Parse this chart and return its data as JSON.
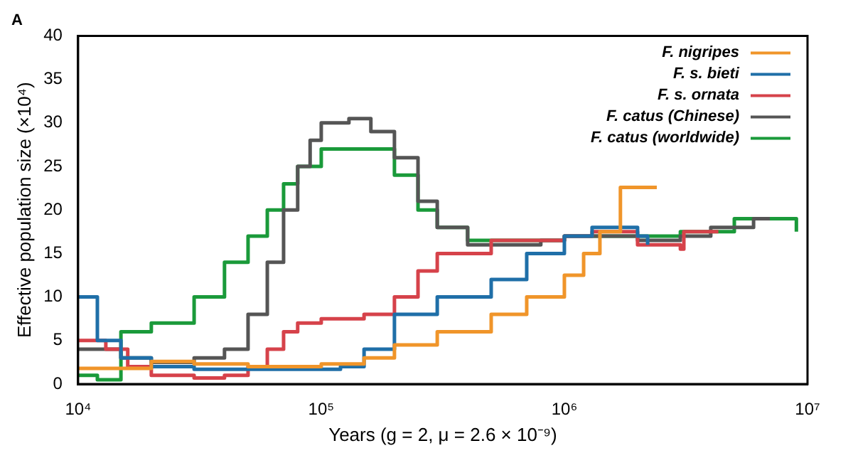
{
  "chart_data": {
    "type": "step",
    "title": "A",
    "xlabel": "Years (g = 2, μ = 2.6 × 10⁻⁹)",
    "ylabel": "Effective population size (×10⁴)",
    "log": "x",
    "xlim": [
      10000,
      10000000
    ],
    "xticks": [
      {
        "value": 10000,
        "label": "10⁴"
      },
      {
        "value": 100000,
        "label": "10⁵"
      },
      {
        "value": 1000000,
        "label": "10⁶"
      },
      {
        "value": 10000000,
        "label": "10⁷"
      }
    ],
    "ylim": [
      0,
      40
    ],
    "yticks": [
      0,
      5,
      10,
      15,
      20,
      25,
      30,
      35,
      40
    ],
    "grid": false,
    "legend": "top right",
    "series": [
      {
        "name": "F. nigripes",
        "color": "#f0952a",
        "x": [
          10000,
          20000,
          30000,
          50000,
          80000,
          100000,
          150000,
          200000,
          300000,
          500000,
          700000,
          1000000,
          1200000,
          1400000,
          1700000,
          2400000
        ],
        "values": [
          1.8,
          2.6,
          2.3,
          2,
          2,
          2.3,
          3,
          4.5,
          6,
          8,
          10,
          12.5,
          15,
          17.5,
          22.6,
          22.6
        ]
      },
      {
        "name": "F. s. bieti",
        "color": "#1f6fa8",
        "x": [
          10000,
          12000,
          15000,
          20000,
          30000,
          100000,
          120000,
          150000,
          200000,
          300000,
          500000,
          700000,
          1000000,
          1300000,
          2000000,
          2200000
        ],
        "values": [
          10,
          5,
          3,
          2,
          1.7,
          1.7,
          2,
          4,
          8,
          10,
          12,
          15,
          17,
          18,
          17,
          16
        ]
      },
      {
        "name": "F. s. ornata",
        "color": "#d6424a",
        "x": [
          10000,
          13000,
          16000,
          20000,
          30000,
          40000,
          50000,
          60000,
          70000,
          80000,
          100000,
          150000,
          200000,
          250000,
          300000,
          500000,
          1000000,
          1300000,
          2000000,
          3000000,
          3100000,
          4300000
        ],
        "values": [
          5,
          4,
          2,
          1,
          0.7,
          1,
          2,
          4,
          6,
          7,
          7.5,
          8,
          10,
          13,
          15,
          16.5,
          17,
          17.5,
          16,
          15.5,
          17.5,
          17.5
        ]
      },
      {
        "name": "F. catus (Chinese)",
        "color": "#555555",
        "x": [
          10000,
          15000,
          20000,
          30000,
          40000,
          50000,
          60000,
          70000,
          80000,
          90000,
          100000,
          130000,
          160000,
          200000,
          250000,
          300000,
          400000,
          500000,
          800000,
          1000000,
          2000000,
          3000000,
          4000000,
          6000000,
          7000000
        ],
        "values": [
          4,
          3,
          2.5,
          3,
          4,
          8,
          14,
          20,
          25,
          28,
          30,
          30.5,
          29,
          26,
          21,
          18,
          16,
          16,
          16.5,
          17,
          16.5,
          17,
          18,
          19,
          19
        ]
      },
      {
        "name": "F. catus (worldwide)",
        "color": "#1a9a3a",
        "x": [
          10000,
          12000,
          15000,
          20000,
          30000,
          40000,
          50000,
          60000,
          70000,
          80000,
          100000,
          150000,
          200000,
          250000,
          300000,
          400000,
          1000000,
          3000000,
          5000000,
          7000000,
          9000000
        ],
        "values": [
          1,
          0.5,
          6,
          7,
          10,
          14,
          17,
          20,
          23,
          25,
          27,
          27,
          24,
          20,
          18,
          16.5,
          17,
          17.5,
          19,
          19,
          17.5
        ]
      }
    ]
  }
}
